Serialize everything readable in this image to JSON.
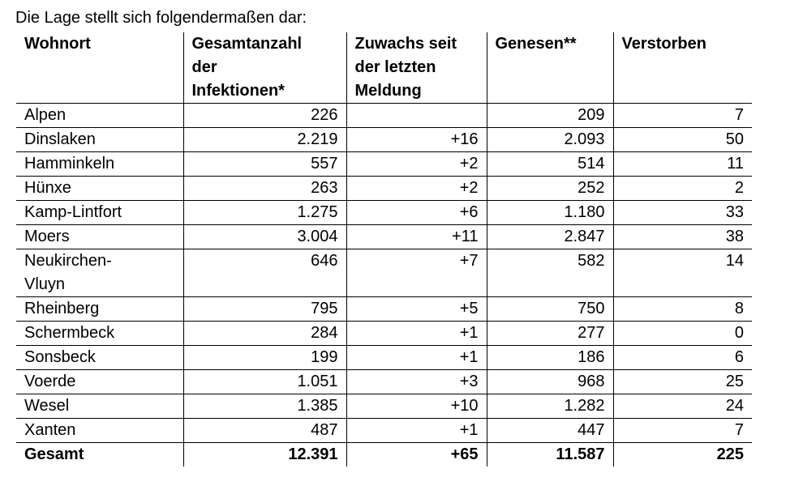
{
  "intro": "Die Lage stellt sich folgendermaßen dar:",
  "table": {
    "header": [
      [
        "Wohnort"
      ],
      [
        "Gesamtanzahl",
        "der",
        "Infektionen*"
      ],
      [
        "Zuwachs seit",
        "der letzten",
        "Meldung"
      ],
      [
        "Genesen**"
      ],
      [
        "Verstorben"
      ]
    ],
    "rows": [
      [
        "Alpen",
        "226",
        null,
        "209",
        "7"
      ],
      [
        "Dinslaken",
        "2.219",
        "+16",
        "2.093",
        "50"
      ],
      [
        "Hamminkeln",
        "557",
        "+2",
        "514",
        "11"
      ],
      [
        "Hünxe",
        "263",
        "+2",
        "252",
        "2"
      ],
      [
        "Kamp-Lintfort",
        "1.275",
        "+6",
        "1.180",
        "33"
      ],
      [
        "Moers",
        "3.004",
        "+11",
        "2.847",
        "38"
      ],
      [
        [
          "Neukirchen-",
          "Vluyn"
        ],
        "646",
        "+7",
        "582",
        "14"
      ],
      [
        "Rheinberg",
        "795",
        "+5",
        "750",
        "8"
      ],
      [
        "Schermbeck",
        "284",
        "+1",
        "277",
        "0"
      ],
      [
        "Sonsbeck",
        "199",
        "+1",
        "186",
        "6"
      ],
      [
        "Voerde",
        "1.051",
        "+3",
        "968",
        "25"
      ],
      [
        "Wesel",
        "1.385",
        "+10",
        "1.282",
        "24"
      ],
      [
        "Xanten",
        "487",
        "+1",
        "447",
        "7"
      ]
    ],
    "total": [
      "Gesamt",
      "12.391",
      "+65",
      "11.587",
      "225"
    ]
  }
}
